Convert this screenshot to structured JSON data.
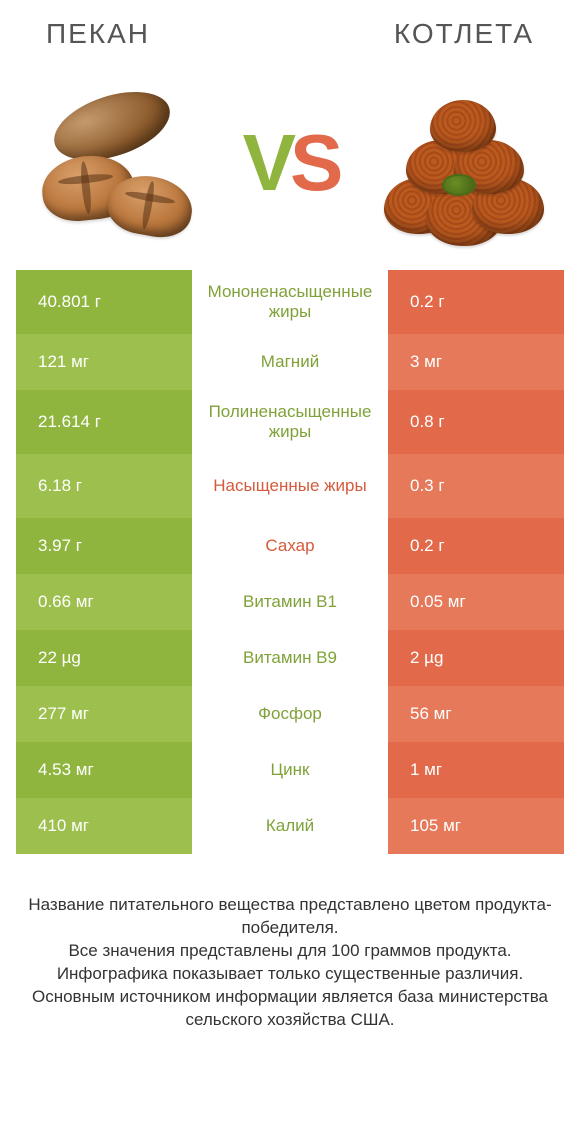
{
  "titles": {
    "left": "ПЕКАН",
    "right": "КОТЛЕТА"
  },
  "vs": {
    "v": "V",
    "s": "S"
  },
  "palette": {
    "green_a": "#8fb53f",
    "green_b": "#9cbf4d",
    "orange_a": "#e26a4a",
    "orange_b": "#e6795a",
    "mid_bg": "#ffffff",
    "mid_green": "#7fa238",
    "mid_orange": "#d65a3c"
  },
  "rows": [
    {
      "label": "Мононенасыщенные жиры",
      "left": "40.801 г",
      "right": "0.2 г",
      "winner": "left",
      "tall": true
    },
    {
      "label": "Магний",
      "left": "121 мг",
      "right": "3 мг",
      "winner": "left"
    },
    {
      "label": "Полиненасыщенные жиры",
      "left": "21.614 г",
      "right": "0.8 г",
      "winner": "left",
      "tall": true
    },
    {
      "label": "Насыщенные жиры",
      "left": "6.18 г",
      "right": "0.3 г",
      "winner": "right",
      "tall": true
    },
    {
      "label": "Сахар",
      "left": "3.97 г",
      "right": "0.2 г",
      "winner": "right"
    },
    {
      "label": "Витамин B1",
      "left": "0.66 мг",
      "right": "0.05 мг",
      "winner": "left"
    },
    {
      "label": "Витамин B9",
      "left": "22 µg",
      "right": "2 µg",
      "winner": "left"
    },
    {
      "label": "Фосфор",
      "left": "277 мг",
      "right": "56 мг",
      "winner": "left"
    },
    {
      "label": "Цинк",
      "left": "4.53 мг",
      "right": "1 мг",
      "winner": "left"
    },
    {
      "label": "Калий",
      "left": "410 мг",
      "right": "105 мг",
      "winner": "left"
    }
  ],
  "footer": [
    "Название питательного вещества представлено цветом продукта-победителя.",
    "Все значения представлены для 100 граммов продукта.",
    "Инфографика показывает только существенные различия.",
    "Основным источником информации является база министерства сельского хозяйства США."
  ]
}
